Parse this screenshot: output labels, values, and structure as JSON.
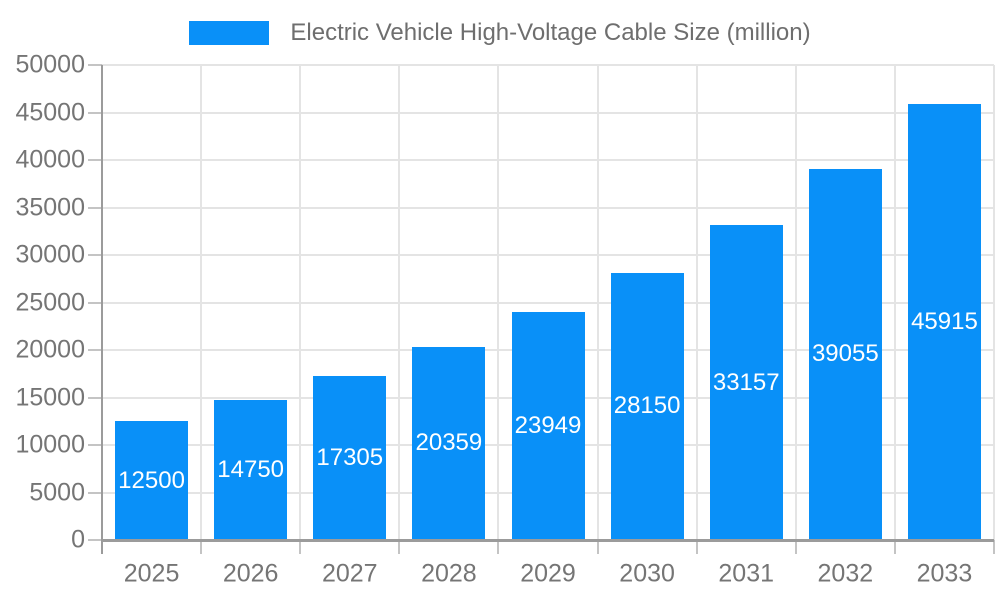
{
  "legend": {
    "position": "top-center",
    "swatch_color": "#0990f8"
  },
  "chart_data": {
    "type": "bar",
    "title": "Electric Vehicle High-Voltage Cable Size (million)",
    "categories": [
      "2025",
      "2026",
      "2027",
      "2028",
      "2029",
      "2030",
      "2031",
      "2032",
      "2033"
    ],
    "values": [
      12500,
      14750,
      17305,
      20359,
      23949,
      28150,
      33157,
      39055,
      45915
    ],
    "xlabel": "",
    "ylabel": "",
    "ylim": [
      0,
      50000
    ],
    "yticks": [
      0,
      5000,
      10000,
      15000,
      20000,
      25000,
      30000,
      35000,
      40000,
      45000,
      50000
    ],
    "grid": true,
    "legend_position": "top-center",
    "bar_color": "#0990f8",
    "value_label_color": "#ffffff",
    "tick_label_color": "#757575",
    "grid_color": "#e4e4e4",
    "tick_color": "#c4c4c4",
    "axis_color": "#9b9b9b",
    "background_color": "#ffffff"
  }
}
